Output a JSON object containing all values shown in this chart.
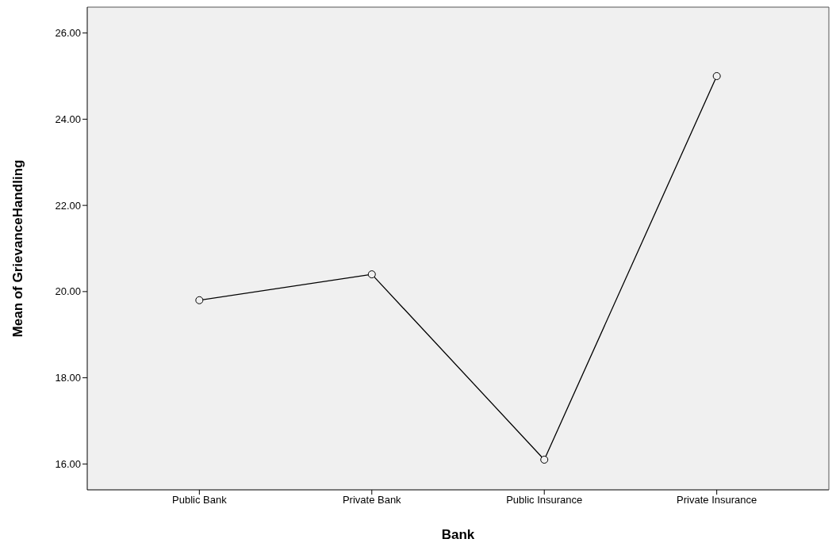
{
  "chart_data": {
    "type": "line",
    "xlabel": "Bank",
    "ylabel": "Mean of GrievanceHandling",
    "categories": [
      "Public Bank",
      "Private Bank",
      "Public Insurance",
      "Private Insurance"
    ],
    "series": [
      {
        "color": "#000000",
        "values": [
          19.8,
          20.4,
          16.1,
          25.0
        ]
      }
    ],
    "ylim": [
      15.4,
      26.6
    ],
    "yticks": [
      {
        "value": 16,
        "label": "16.00"
      },
      {
        "value": 18,
        "label": "18.00"
      },
      {
        "value": 20,
        "label": "20.00"
      },
      {
        "value": 22,
        "label": "22.00"
      },
      {
        "value": 24,
        "label": "24.00"
      },
      {
        "value": 26,
        "label": "26.00"
      }
    ],
    "marker": "circle",
    "line_style": "solid",
    "grid": false,
    "legend": false
  }
}
